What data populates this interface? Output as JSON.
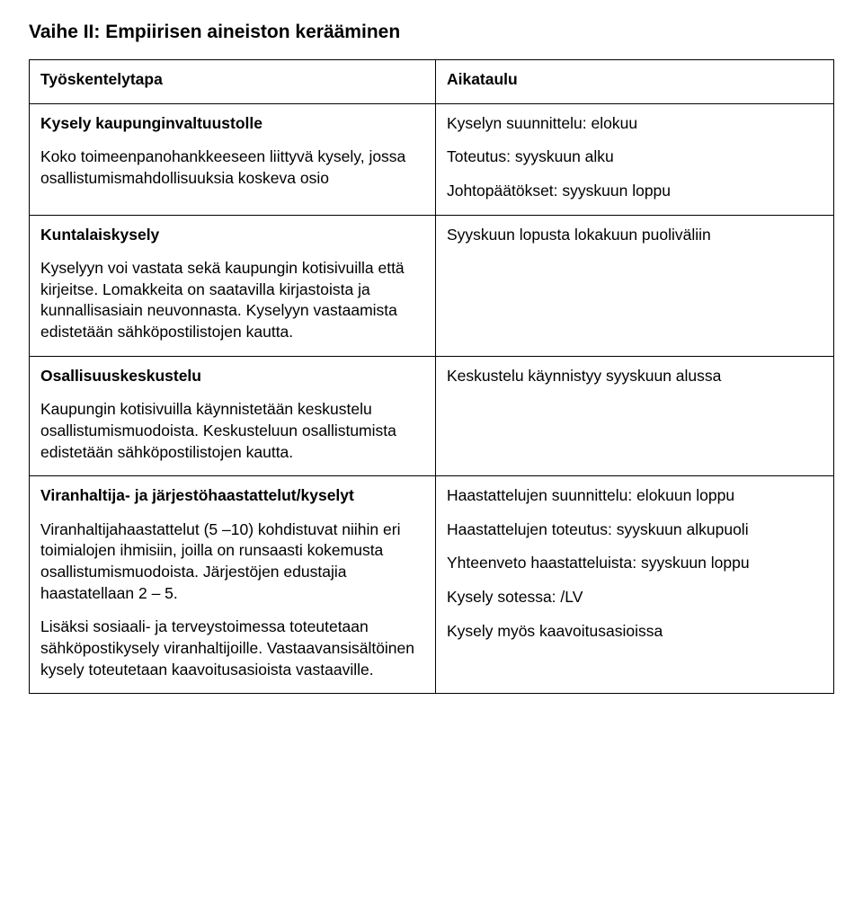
{
  "page_title": "Vaihe II: Empiirisen aineiston kerääminen",
  "table": {
    "columns": [
      "left",
      "right"
    ],
    "rows": [
      {
        "left": {
          "heading": "Työskentelytapa"
        },
        "right": {
          "heading": "Aikataulu"
        }
      },
      {
        "left": {
          "heading": "Kysely kaupunginvaltuustolle",
          "body": "Koko toimeenpanohankkeeseen liittyvä kysely, jossa osallistumismahdollisuuksia koskeva osio"
        },
        "right": {
          "p1": "Kyselyn suunnittelu: elokuu",
          "p2": "Toteutus: syyskuun alku",
          "p3": "Johtopäätökset: syyskuun loppu"
        }
      },
      {
        "left": {
          "heading": "Kuntalaiskysely",
          "body": "Kyselyyn voi vastata sekä kaupungin kotisivuilla että kirjeitse. Lomakkeita on saatavilla kirjastoista ja kunnallisasiain neuvonnasta. Kyselyyn vastaamista edistetään sähköpostilistojen kautta."
        },
        "right": {
          "p1": "Syyskuun lopusta lokakuun puoliväliin"
        }
      },
      {
        "left": {
          "heading": "Osallisuuskeskustelu",
          "body": "Kaupungin kotisivuilla käynnistetään keskustelu osallistumismuodoista. Keskusteluun osallistumista edistetään sähköpostilistojen kautta."
        },
        "right": {
          "p1": "Keskustelu käynnistyy syyskuun alussa"
        }
      },
      {
        "left": {
          "heading": "Viranhaltija- ja järjestöhaastattelut/kyselyt",
          "body1": "Viranhaltijahaastattelut (5 –10) kohdistuvat niihin eri toimialojen ihmisiin, joilla on runsaasti kokemusta osallistumismuodoista. Järjestöjen edustajia haastatellaan 2 – 5.",
          "body2": "Lisäksi sosiaali- ja terveystoimessa toteutetaan sähköpostikysely viranhaltijoille. Vastaavansisältöinen kysely toteutetaan kaavoitusasioista vastaaville."
        },
        "right": {
          "p1": "Haastattelujen suunnittelu: elokuun loppu",
          "p2": "Haastattelujen toteutus: syyskuun alkupuoli",
          "p3": "Yhteenveto haastatteluista: syyskuun loppu",
          "p4": "Kysely sotessa: /LV",
          "p5": "Kysely myös kaavoitusasioissa"
        }
      }
    ]
  }
}
